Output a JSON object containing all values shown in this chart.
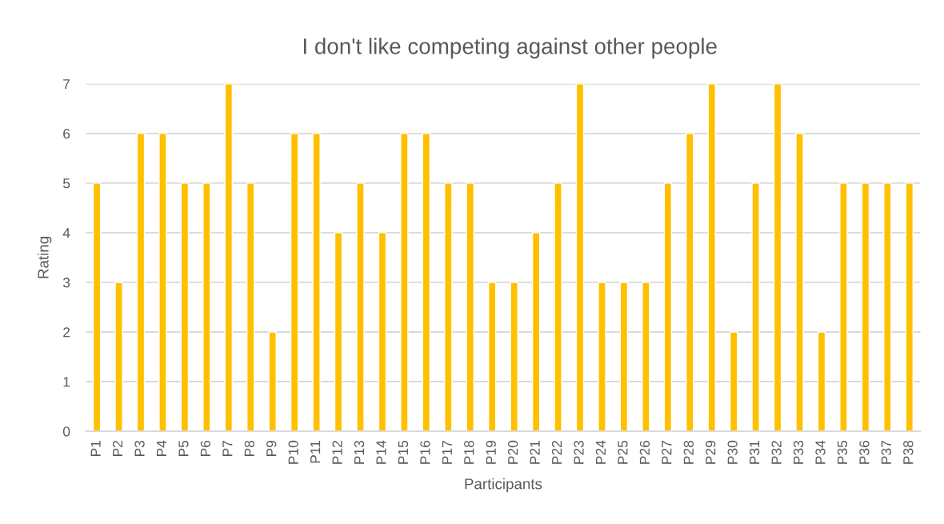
{
  "chart_data": {
    "type": "bar",
    "title": "I don't like competing against other people",
    "xlabel": "Participants",
    "ylabel": "Rating",
    "categories": [
      "P1",
      "P2",
      "P3",
      "P4",
      "P5",
      "P6",
      "P7",
      "P8",
      "P9",
      "P10",
      "P11",
      "P12",
      "P13",
      "P14",
      "P15",
      "P16",
      "P17",
      "P18",
      "P19",
      "P20",
      "P21",
      "P22",
      "P23",
      "P24",
      "P25",
      "P26",
      "P27",
      "P28",
      "P29",
      "P30",
      "P31",
      "P32",
      "P33",
      "P34",
      "P35",
      "P36",
      "P37",
      "P38"
    ],
    "values": [
      5,
      3,
      6,
      6,
      5,
      5,
      7,
      5,
      2,
      6,
      6,
      4,
      5,
      4,
      6,
      6,
      5,
      5,
      3,
      3,
      4,
      5,
      7,
      3,
      3,
      3,
      5,
      6,
      7,
      2,
      5,
      7,
      6,
      2,
      5,
      5,
      5,
      5
    ],
    "color": "#ffc000",
    "ylim": [
      0,
      7
    ],
    "yticks": [
      0,
      1,
      2,
      3,
      4,
      5,
      6,
      7
    ],
    "grid": "y",
    "legend": false
  }
}
